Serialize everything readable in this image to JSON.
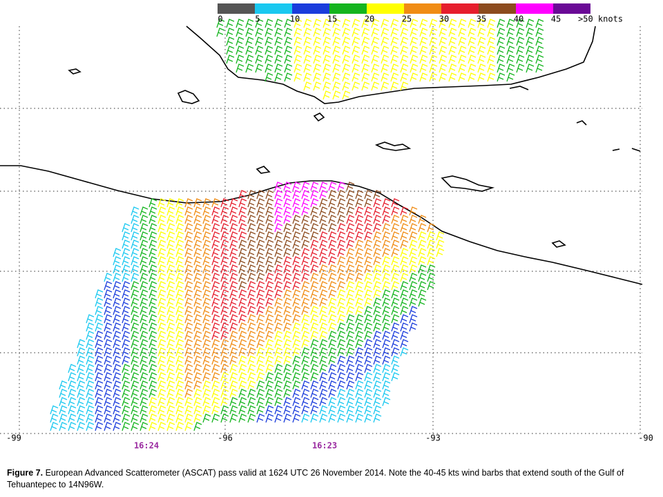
{
  "colorbar": {
    "labels": [
      "0",
      "5",
      "10",
      "15",
      "20",
      "25",
      "30",
      "35",
      "40",
      "45",
      ">50 knots"
    ],
    "colors": [
      "#555555",
      "#19c8f0",
      "#1a3cdc",
      "#14b41e",
      "#ffff00",
      "#f08c14",
      "#e61e2d",
      "#8c4b1e",
      "#ff00ff",
      "#6a0a96"
    ]
  },
  "axis": {
    "x_labels": [
      "-99",
      "-96",
      "-93",
      "-90"
    ]
  },
  "pass_times": [
    "16:24",
    "16:23"
  ],
  "caption": {
    "label": "Figure 7.",
    "text": "European Advanced Scatterometer (ASCAT) pass valid at 1624 UTC 26 November 2014. Note the 40-45 kts wind barbs that extend south of the Gulf of Tehuantepec to 14N96W."
  }
}
